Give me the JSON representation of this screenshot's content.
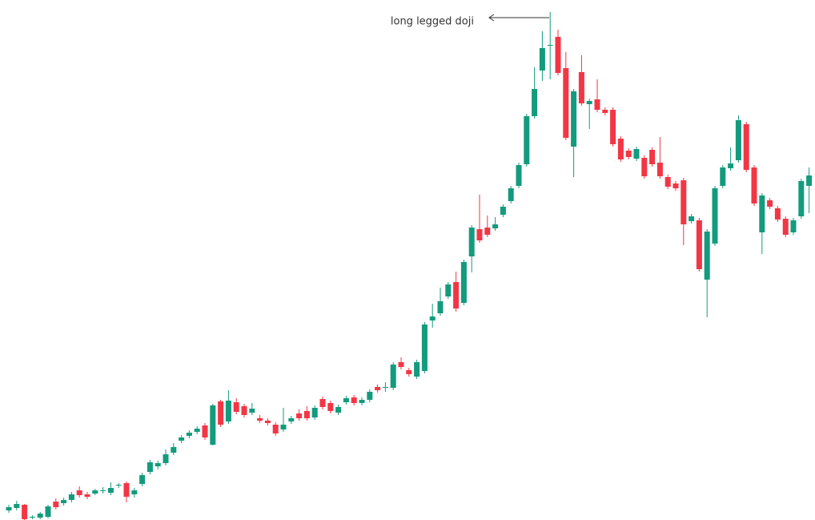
{
  "chart_data": {
    "type": "candlestick",
    "annotation": "long legged doji",
    "up_color": "#139b7d",
    "down_color": "#f23645",
    "ylim": [
      0,
      649
    ],
    "open": [
      12,
      15,
      19,
      3,
      3,
      4,
      23,
      21,
      25,
      37,
      32,
      33,
      36,
      34,
      44,
      46,
      32,
      45,
      60,
      67,
      71,
      84,
      99,
      105,
      110,
      118,
      94,
      148,
      123,
      147,
      142,
      134,
      127,
      124,
      119,
      113,
      123,
      133,
      136,
      128,
      151,
      146,
      134,
      147,
      153,
      146,
      150,
      166,
      166,
      165,
      197,
      187,
      179,
      186,
      249,
      258,
      279,
      297,
      271,
      329,
      363,
      365,
      364,
      381,
      398,
      417,
      444,
      504,
      561,
      593,
      603,
      564,
      466,
      559,
      519,
      525,
      512,
      512,
      476,
      461,
      451,
      452,
      462,
      446,
      428,
      420,
      424,
      373,
      374,
      300,
      345,
      417,
      439,
      449,
      494,
      440,
      359,
      399,
      389,
      376,
      359,
      379,
      417
    ],
    "high": [
      19,
      24,
      20,
      6,
      10,
      19,
      27,
      28,
      35,
      42,
      35,
      39,
      41,
      47,
      46,
      48,
      40,
      59,
      75,
      74,
      88,
      96,
      106,
      112,
      117,
      121,
      145,
      150,
      162,
      152,
      145,
      146,
      131,
      127,
      122,
      140,
      130,
      138,
      142,
      143,
      154,
      149,
      144,
      155,
      156,
      153,
      163,
      169,
      172,
      197,
      203,
      190,
      200,
      247,
      270,
      290,
      297,
      310,
      325,
      368,
      406,
      380,
      378,
      394,
      417,
      446,
      507,
      565,
      610,
      634,
      612,
      584,
      538,
      580,
      526,
      550,
      515,
      515,
      479,
      464,
      466,
      455,
      465,
      478,
      431,
      423,
      427,
      382,
      377,
      363,
      417,
      443,
      465,
      505,
      497,
      443,
      408,
      402,
      392,
      379,
      377,
      426,
      440
    ],
    "low": [
      9,
      12,
      0,
      1,
      1,
      2,
      13,
      18,
      22,
      28,
      26,
      31,
      33,
      31,
      40,
      22,
      28,
      42,
      57,
      63,
      68,
      81,
      96,
      102,
      107,
      100,
      93,
      116,
      120,
      132,
      128,
      131,
      121,
      118,
      105,
      110,
      120,
      124,
      124,
      125,
      138,
      133,
      131,
      144,
      143,
      143,
      147,
      159,
      160,
      162,
      188,
      179,
      176,
      183,
      240,
      255,
      276,
      260,
      268,
      309,
      346,
      353,
      361,
      378,
      395,
      414,
      441,
      501,
      548,
      550,
      555,
      474,
      428,
      517,
      488,
      509,
      505,
      466,
      447,
      450,
      448,
      426,
      441,
      426,
      413,
      411,
      343,
      370,
      310,
      253,
      342,
      414,
      436,
      446,
      434,
      392,
      332,
      388,
      372,
      353,
      356,
      376,
      383
    ],
    "close": [
      16,
      20,
      1,
      4,
      8,
      17,
      16,
      25,
      32,
      31,
      29,
      37,
      37,
      40,
      44,
      29,
      37,
      56,
      72,
      71,
      82,
      91,
      103,
      109,
      114,
      103,
      143,
      119,
      149,
      135,
      131,
      139,
      124,
      121,
      108,
      119,
      127,
      127,
      127,
      140,
      141,
      136,
      141,
      152,
      146,
      150,
      160,
      162,
      166,
      194,
      191,
      182,
      197,
      244,
      254,
      273,
      294,
      264,
      322,
      365,
      349,
      356,
      369,
      391,
      414,
      443,
      504,
      538,
      589,
      593,
      558,
      477,
      535,
      520,
      523,
      512,
      508,
      469,
      450,
      453,
      463,
      429,
      444,
      429,
      416,
      414,
      369,
      379,
      313,
      360,
      414,
      440,
      445,
      499,
      437,
      395,
      405,
      391,
      375,
      356,
      374,
      423,
      430
    ]
  }
}
